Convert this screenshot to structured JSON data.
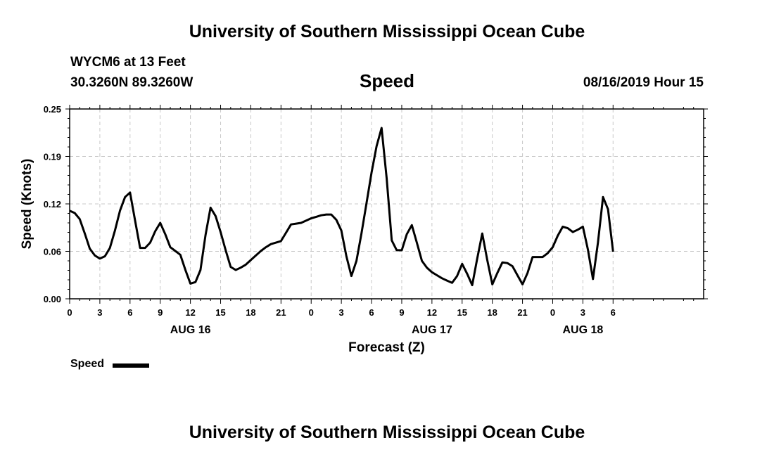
{
  "header": {
    "title_top": "University of Southern Mississippi Ocean Cube",
    "station": "WYCM6 at 13 Feet",
    "coords": "30.3260N 89.3260W",
    "datetime": "08/16/2019 Hour 15",
    "title_bottom": "University of Southern Mississippi Ocean Cube"
  },
  "chart_data": {
    "type": "line",
    "title": "Speed",
    "xlabel": "Forecast (Z)",
    "ylabel": "Speed (Knots)",
    "ylim": [
      0,
      0.25
    ],
    "yticks": [
      "0.00",
      "0.06",
      "0.12",
      "0.19",
      "0.25"
    ],
    "xlim": [
      0,
      63
    ],
    "xticks": [
      {
        "x": 0,
        "label": "0"
      },
      {
        "x": 3,
        "label": "3"
      },
      {
        "x": 6,
        "label": "6"
      },
      {
        "x": 9,
        "label": "9"
      },
      {
        "x": 12,
        "label": "12"
      },
      {
        "x": 15,
        "label": "15"
      },
      {
        "x": 18,
        "label": "18"
      },
      {
        "x": 21,
        "label": "21"
      },
      {
        "x": 24,
        "label": "0"
      },
      {
        "x": 27,
        "label": "3"
      },
      {
        "x": 30,
        "label": "6"
      },
      {
        "x": 33,
        "label": "9"
      },
      {
        "x": 36,
        "label": "12"
      },
      {
        "x": 39,
        "label": "15"
      },
      {
        "x": 42,
        "label": "18"
      },
      {
        "x": 45,
        "label": "21"
      },
      {
        "x": 48,
        "label": "0"
      },
      {
        "x": 51,
        "label": "3"
      },
      {
        "x": 54,
        "label": "6"
      }
    ],
    "date_labels": [
      {
        "x": 12,
        "label": "AUG 16"
      },
      {
        "x": 36,
        "label": "AUG 17"
      },
      {
        "x": 51,
        "label": "AUG 18"
      }
    ],
    "grid": true,
    "legend": "bottom-left",
    "series": [
      {
        "name": "Speed",
        "color": "#000000",
        "x": [
          0,
          0.5,
          1,
          1.5,
          2,
          2.5,
          3,
          3.5,
          4,
          4.5,
          5,
          5.5,
          6,
          6.5,
          7,
          7.5,
          8,
          8.5,
          9,
          9.5,
          10,
          10.5,
          11,
          11.5,
          12,
          12.5,
          13,
          13.5,
          14,
          14.5,
          15,
          15.5,
          16,
          16.5,
          17,
          17.5,
          18,
          18.5,
          19,
          19.5,
          20,
          20.5,
          21,
          21.5,
          22,
          22.5,
          23,
          23.5,
          24,
          24.5,
          25,
          25.5,
          26,
          26.5,
          27,
          27.5,
          28,
          28.5,
          29,
          29.5,
          30,
          30.5,
          31,
          31.5,
          32,
          32.5,
          33,
          33.5,
          34,
          34.5,
          35,
          35.5,
          36,
          36.5,
          37,
          37.5,
          38,
          38.5,
          39,
          39.5,
          40,
          40.5,
          41,
          41.5,
          42,
          42.5,
          43,
          43.5,
          44,
          44.5,
          45,
          45.5,
          46,
          46.5,
          47,
          47.5,
          48,
          48.5,
          49,
          49.5,
          50,
          50.5,
          51,
          51.5,
          52,
          52.5,
          53,
          53.5,
          54
        ],
        "values": [
          0.116,
          0.113,
          0.105,
          0.086,
          0.066,
          0.057,
          0.053,
          0.056,
          0.067,
          0.09,
          0.116,
          0.134,
          0.14,
          0.103,
          0.067,
          0.067,
          0.074,
          0.089,
          0.1,
          0.085,
          0.068,
          0.063,
          0.058,
          0.038,
          0.02,
          0.022,
          0.038,
          0.084,
          0.12,
          0.109,
          0.088,
          0.064,
          0.042,
          0.038,
          0.041,
          0.045,
          0.051,
          0.057,
          0.063,
          0.068,
          0.072,
          0.074,
          0.076,
          0.087,
          0.098,
          0.099,
          0.1,
          0.103,
          0.106,
          0.108,
          0.11,
          0.111,
          0.111,
          0.104,
          0.09,
          0.056,
          0.03,
          0.05,
          0.086,
          0.126,
          0.166,
          0.201,
          0.225,
          0.159,
          0.077,
          0.064,
          0.064,
          0.085,
          0.097,
          0.074,
          0.05,
          0.041,
          0.035,
          0.031,
          0.027,
          0.024,
          0.021,
          0.03,
          0.046,
          0.033,
          0.018,
          0.053,
          0.086,
          0.051,
          0.019,
          0.034,
          0.048,
          0.047,
          0.043,
          0.031,
          0.019,
          0.034,
          0.055,
          0.055,
          0.055,
          0.06,
          0.068,
          0.083,
          0.095,
          0.093,
          0.088,
          0.091,
          0.095,
          0.065,
          0.026,
          0.074,
          0.134,
          0.118,
          0.062
        ]
      }
    ]
  }
}
